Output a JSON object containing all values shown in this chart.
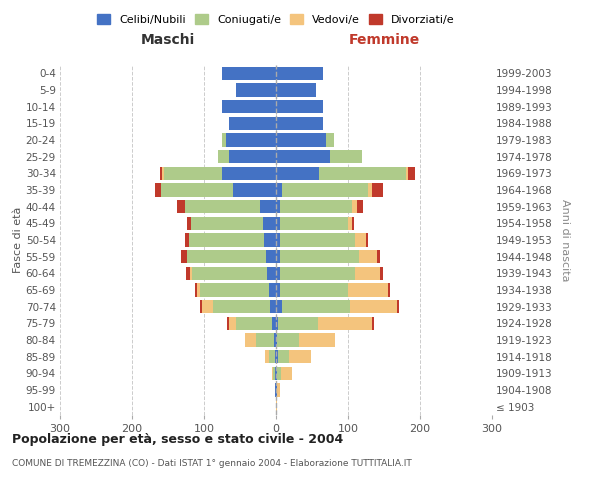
{
  "age_groups": [
    "100+",
    "95-99",
    "90-94",
    "85-89",
    "80-84",
    "75-79",
    "70-74",
    "65-69",
    "60-64",
    "55-59",
    "50-54",
    "45-49",
    "40-44",
    "35-39",
    "30-34",
    "25-29",
    "20-24",
    "15-19",
    "10-14",
    "5-9",
    "0-4"
  ],
  "birth_years": [
    "≤ 1903",
    "1904-1908",
    "1909-1913",
    "1914-1918",
    "1919-1923",
    "1924-1928",
    "1929-1933",
    "1934-1938",
    "1939-1943",
    "1944-1948",
    "1949-1953",
    "1954-1958",
    "1959-1963",
    "1964-1968",
    "1969-1973",
    "1974-1978",
    "1979-1983",
    "1984-1988",
    "1989-1993",
    "1994-1998",
    "1999-2003"
  ],
  "males": {
    "celibi": [
      0,
      1,
      1,
      2,
      3,
      5,
      8,
      10,
      12,
      14,
      16,
      18,
      22,
      60,
      75,
      65,
      70,
      65,
      75,
      55,
      75
    ],
    "coniugati": [
      0,
      1,
      3,
      8,
      25,
      50,
      80,
      95,
      105,
      110,
      105,
      100,
      105,
      100,
      80,
      15,
      5,
      0,
      0,
      0,
      0
    ],
    "vedovi": [
      0,
      0,
      2,
      5,
      15,
      10,
      15,
      5,
      3,
      0,
      0,
      0,
      0,
      0,
      3,
      0,
      0,
      0,
      0,
      0,
      0
    ],
    "divorziati": [
      0,
      0,
      0,
      0,
      0,
      3,
      3,
      3,
      5,
      8,
      5,
      5,
      10,
      8,
      3,
      0,
      0,
      0,
      0,
      0,
      0
    ]
  },
  "females": {
    "nubili": [
      0,
      1,
      2,
      3,
      2,
      3,
      8,
      5,
      5,
      5,
      5,
      5,
      5,
      8,
      60,
      75,
      70,
      65,
      65,
      55,
      65
    ],
    "coniugate": [
      0,
      1,
      5,
      15,
      30,
      55,
      95,
      95,
      105,
      110,
      105,
      95,
      100,
      120,
      120,
      45,
      10,
      0,
      0,
      0,
      0
    ],
    "vedove": [
      1,
      3,
      15,
      30,
      50,
      75,
      65,
      55,
      35,
      25,
      15,
      5,
      8,
      5,
      3,
      0,
      0,
      0,
      0,
      0,
      0
    ],
    "divorziate": [
      0,
      0,
      0,
      0,
      0,
      3,
      3,
      3,
      3,
      5,
      3,
      3,
      8,
      15,
      10,
      0,
      0,
      0,
      0,
      0,
      0
    ]
  },
  "colors": {
    "celibi": "#4472C4",
    "coniugati": "#AECB8A",
    "vedovi": "#F4C47D",
    "divorziati": "#C0392B"
  },
  "xlim": 300,
  "title": "Popolazione per età, sesso e stato civile - 2004",
  "subtitle": "COMUNE DI TREMEZZINA (CO) - Dati ISTAT 1° gennaio 2004 - Elaborazione TUTTITALIA.IT",
  "ylabel_left": "Fasce di età",
  "ylabel_right": "Anni di nascita",
  "xlabel_left": "Maschi",
  "xlabel_right": "Femmine",
  "bg_color": "#ffffff",
  "grid_color": "#cccccc"
}
